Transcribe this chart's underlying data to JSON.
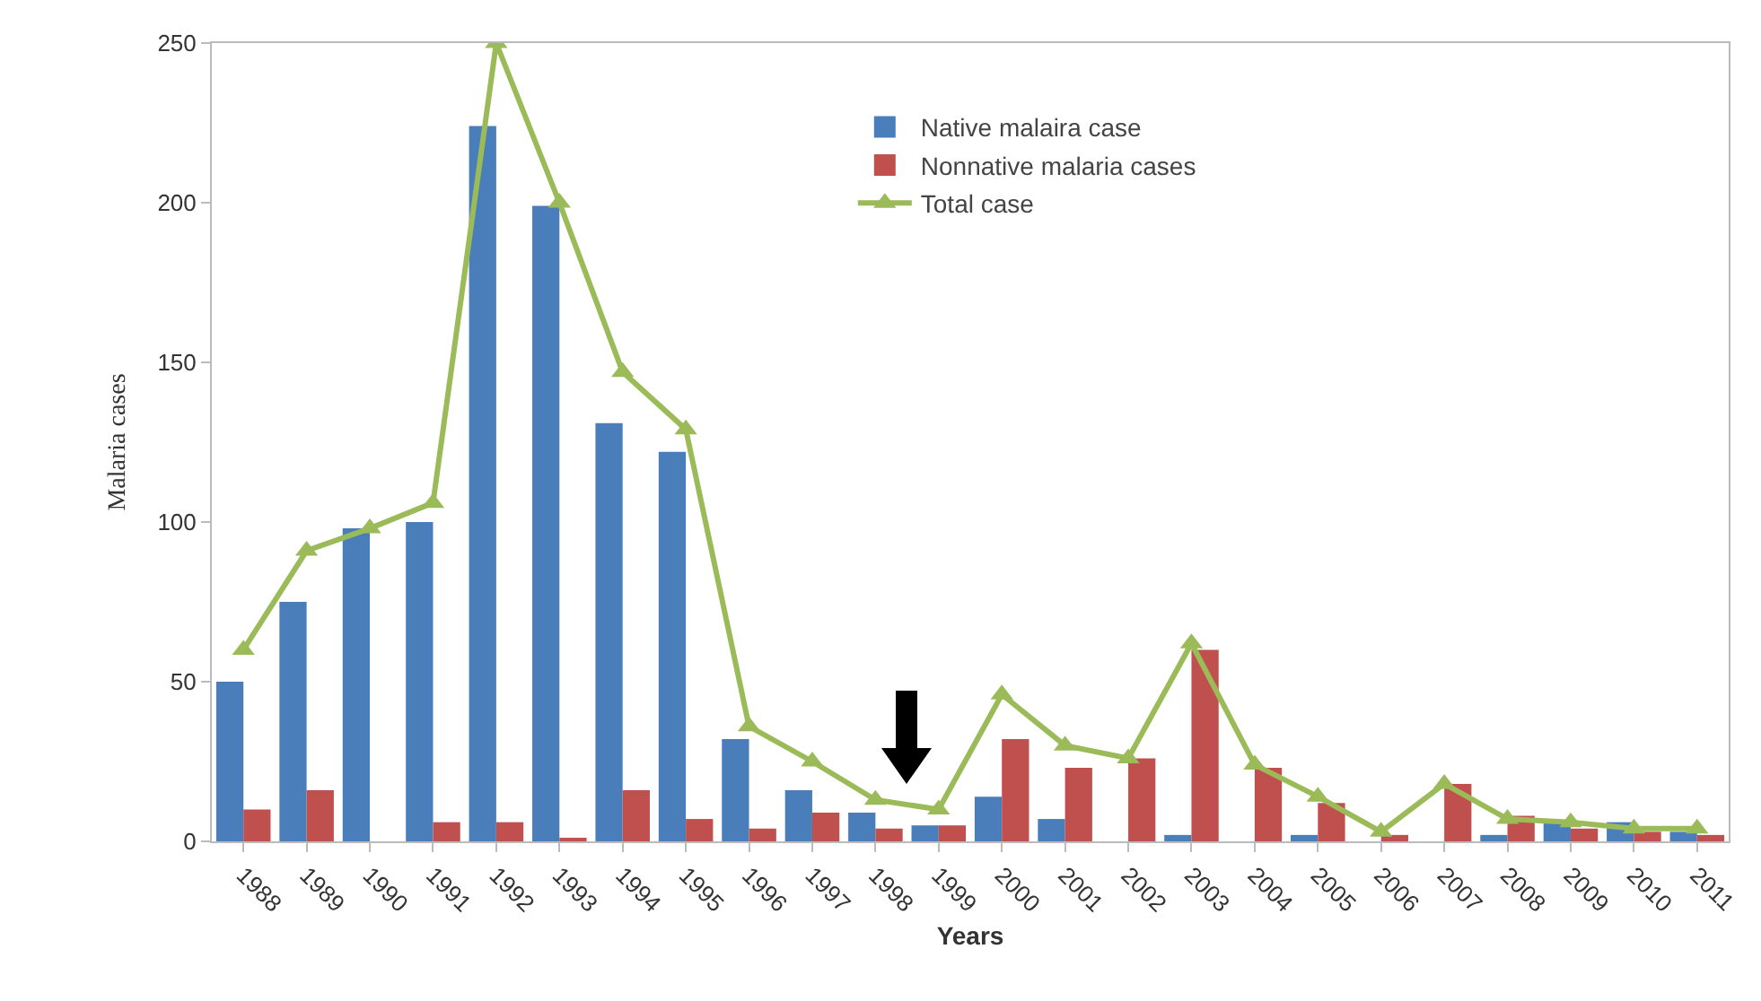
{
  "chart_data": {
    "type": "bar",
    "xlabel": "Years",
    "ylabel": "Malaria cases",
    "categories": [
      "1988",
      "1989",
      "1990",
      "1991",
      "1992",
      "1993",
      "1994",
      "1995",
      "1996",
      "1997",
      "1998",
      "1999",
      "2000",
      "2001",
      "2002",
      "2003",
      "2004",
      "2005",
      "2006",
      "2007",
      "2008",
      "2009",
      "2010",
      "2011"
    ],
    "series": [
      {
        "name": "Native malaira case",
        "color": "#4a7ebb",
        "values": [
          50,
          75,
          98,
          100,
          224,
          199,
          131,
          122,
          32,
          16,
          9,
          5,
          14,
          7,
          0,
          2,
          0,
          2,
          0,
          0,
          2,
          6,
          6,
          3
        ]
      },
      {
        "name": "Nonnative malaria cases",
        "color": "#c0504d",
        "values": [
          10,
          16,
          0,
          6,
          6,
          1,
          16,
          7,
          4,
          9,
          4,
          5,
          32,
          23,
          26,
          60,
          23,
          12,
          2,
          18,
          8,
          4,
          3,
          2
        ]
      },
      {
        "name": "Total case",
        "type": "line",
        "color": "#9bbb59",
        "marker": "triangle",
        "values": [
          60,
          91,
          98,
          106,
          250,
          200,
          147,
          129,
          36,
          25,
          13,
          10,
          46,
          30,
          26,
          62,
          24,
          14,
          3,
          18,
          7,
          6,
          4,
          4
        ]
      }
    ],
    "ylim": [
      0,
      250
    ],
    "yticks": [
      0,
      50,
      100,
      150,
      200,
      250
    ],
    "grid": false,
    "legend": "top right"
  }
}
